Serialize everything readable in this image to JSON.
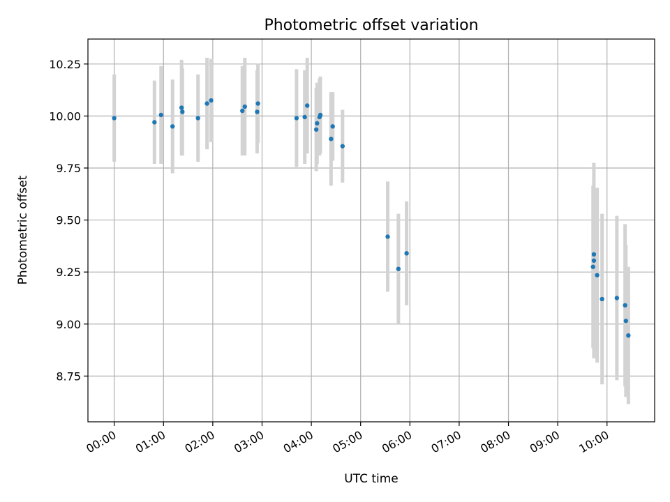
{
  "chart_data": {
    "type": "scatter",
    "title": "Photometric offset variation",
    "xlabel": "UTC time",
    "ylabel": "Photometric offset",
    "x_unit": "hours",
    "xlim": [
      "-00:32",
      "10:58"
    ],
    "ylim": [
      8.53,
      10.37
    ],
    "grid": true,
    "x_ticks": [
      "00:00",
      "01:00",
      "02:00",
      "03:00",
      "04:00",
      "05:00",
      "06:00",
      "07:00",
      "08:00",
      "09:00",
      "10:00"
    ],
    "y_ticks": [
      "8.75",
      "9.00",
      "9.25",
      "9.50",
      "9.75",
      "10.00",
      "10.25"
    ],
    "colors": {
      "points": "#1f77b4",
      "error_bars": "#d3d3d3"
    },
    "points": [
      {
        "x": "00:00",
        "y": 9.99,
        "err": 0.21
      },
      {
        "x": "00:49",
        "y": 9.97,
        "err": 0.2
      },
      {
        "x": "00:57",
        "y": 10.005,
        "err": 0.235
      },
      {
        "x": "01:11",
        "y": 9.95,
        "err": 0.225
      },
      {
        "x": "01:22",
        "y": 10.04,
        "err": 0.23
      },
      {
        "x": "01:23",
        "y": 10.02,
        "err": 0.21
      },
      {
        "x": "01:42",
        "y": 9.99,
        "err": 0.21
      },
      {
        "x": "01:53",
        "y": 10.06,
        "err": 0.22
      },
      {
        "x": "01:58",
        "y": 10.075,
        "err": 0.2
      },
      {
        "x": "02:36",
        "y": 10.025,
        "err": 0.215
      },
      {
        "x": "02:39",
        "y": 10.045,
        "err": 0.235
      },
      {
        "x": "02:54",
        "y": 10.02,
        "err": 0.2
      },
      {
        "x": "02:55",
        "y": 10.06,
        "err": 0.19
      },
      {
        "x": "03:42",
        "y": 9.99,
        "err": 0.235
      },
      {
        "x": "03:52",
        "y": 9.995,
        "err": 0.225
      },
      {
        "x": "03:55",
        "y": 10.05,
        "err": 0.23
      },
      {
        "x": "04:06",
        "y": 9.935,
        "err": 0.2
      },
      {
        "x": "04:07",
        "y": 9.965,
        "err": 0.195
      },
      {
        "x": "04:10",
        "y": 9.995,
        "err": 0.185
      },
      {
        "x": "04:11",
        "y": 10.005,
        "err": 0.185
      },
      {
        "x": "04:24",
        "y": 9.89,
        "err": 0.225
      },
      {
        "x": "04:26",
        "y": 9.95,
        "err": 0.165
      },
      {
        "x": "04:38",
        "y": 9.855,
        "err": 0.175
      },
      {
        "x": "05:33",
        "y": 9.42,
        "err": 0.265
      },
      {
        "x": "05:46",
        "y": 9.265,
        "err": 0.265
      },
      {
        "x": "05:56",
        "y": 9.34,
        "err": 0.25
      },
      {
        "x": "09:43",
        "y": 9.275,
        "err": 0.39
      },
      {
        "x": "09:44",
        "y": 9.305,
        "err": 0.47
      },
      {
        "x": "09:44",
        "y": 9.335,
        "err": 0.32
      },
      {
        "x": "09:48",
        "y": 9.235,
        "err": 0.42
      },
      {
        "x": "09:54",
        "y": 9.12,
        "err": 0.41
      },
      {
        "x": "10:12",
        "y": 9.125,
        "err": 0.395
      },
      {
        "x": "10:22",
        "y": 9.09,
        "err": 0.39
      },
      {
        "x": "10:23",
        "y": 9.015,
        "err": 0.365
      },
      {
        "x": "10:26",
        "y": 8.945,
        "err": 0.33
      }
    ]
  }
}
